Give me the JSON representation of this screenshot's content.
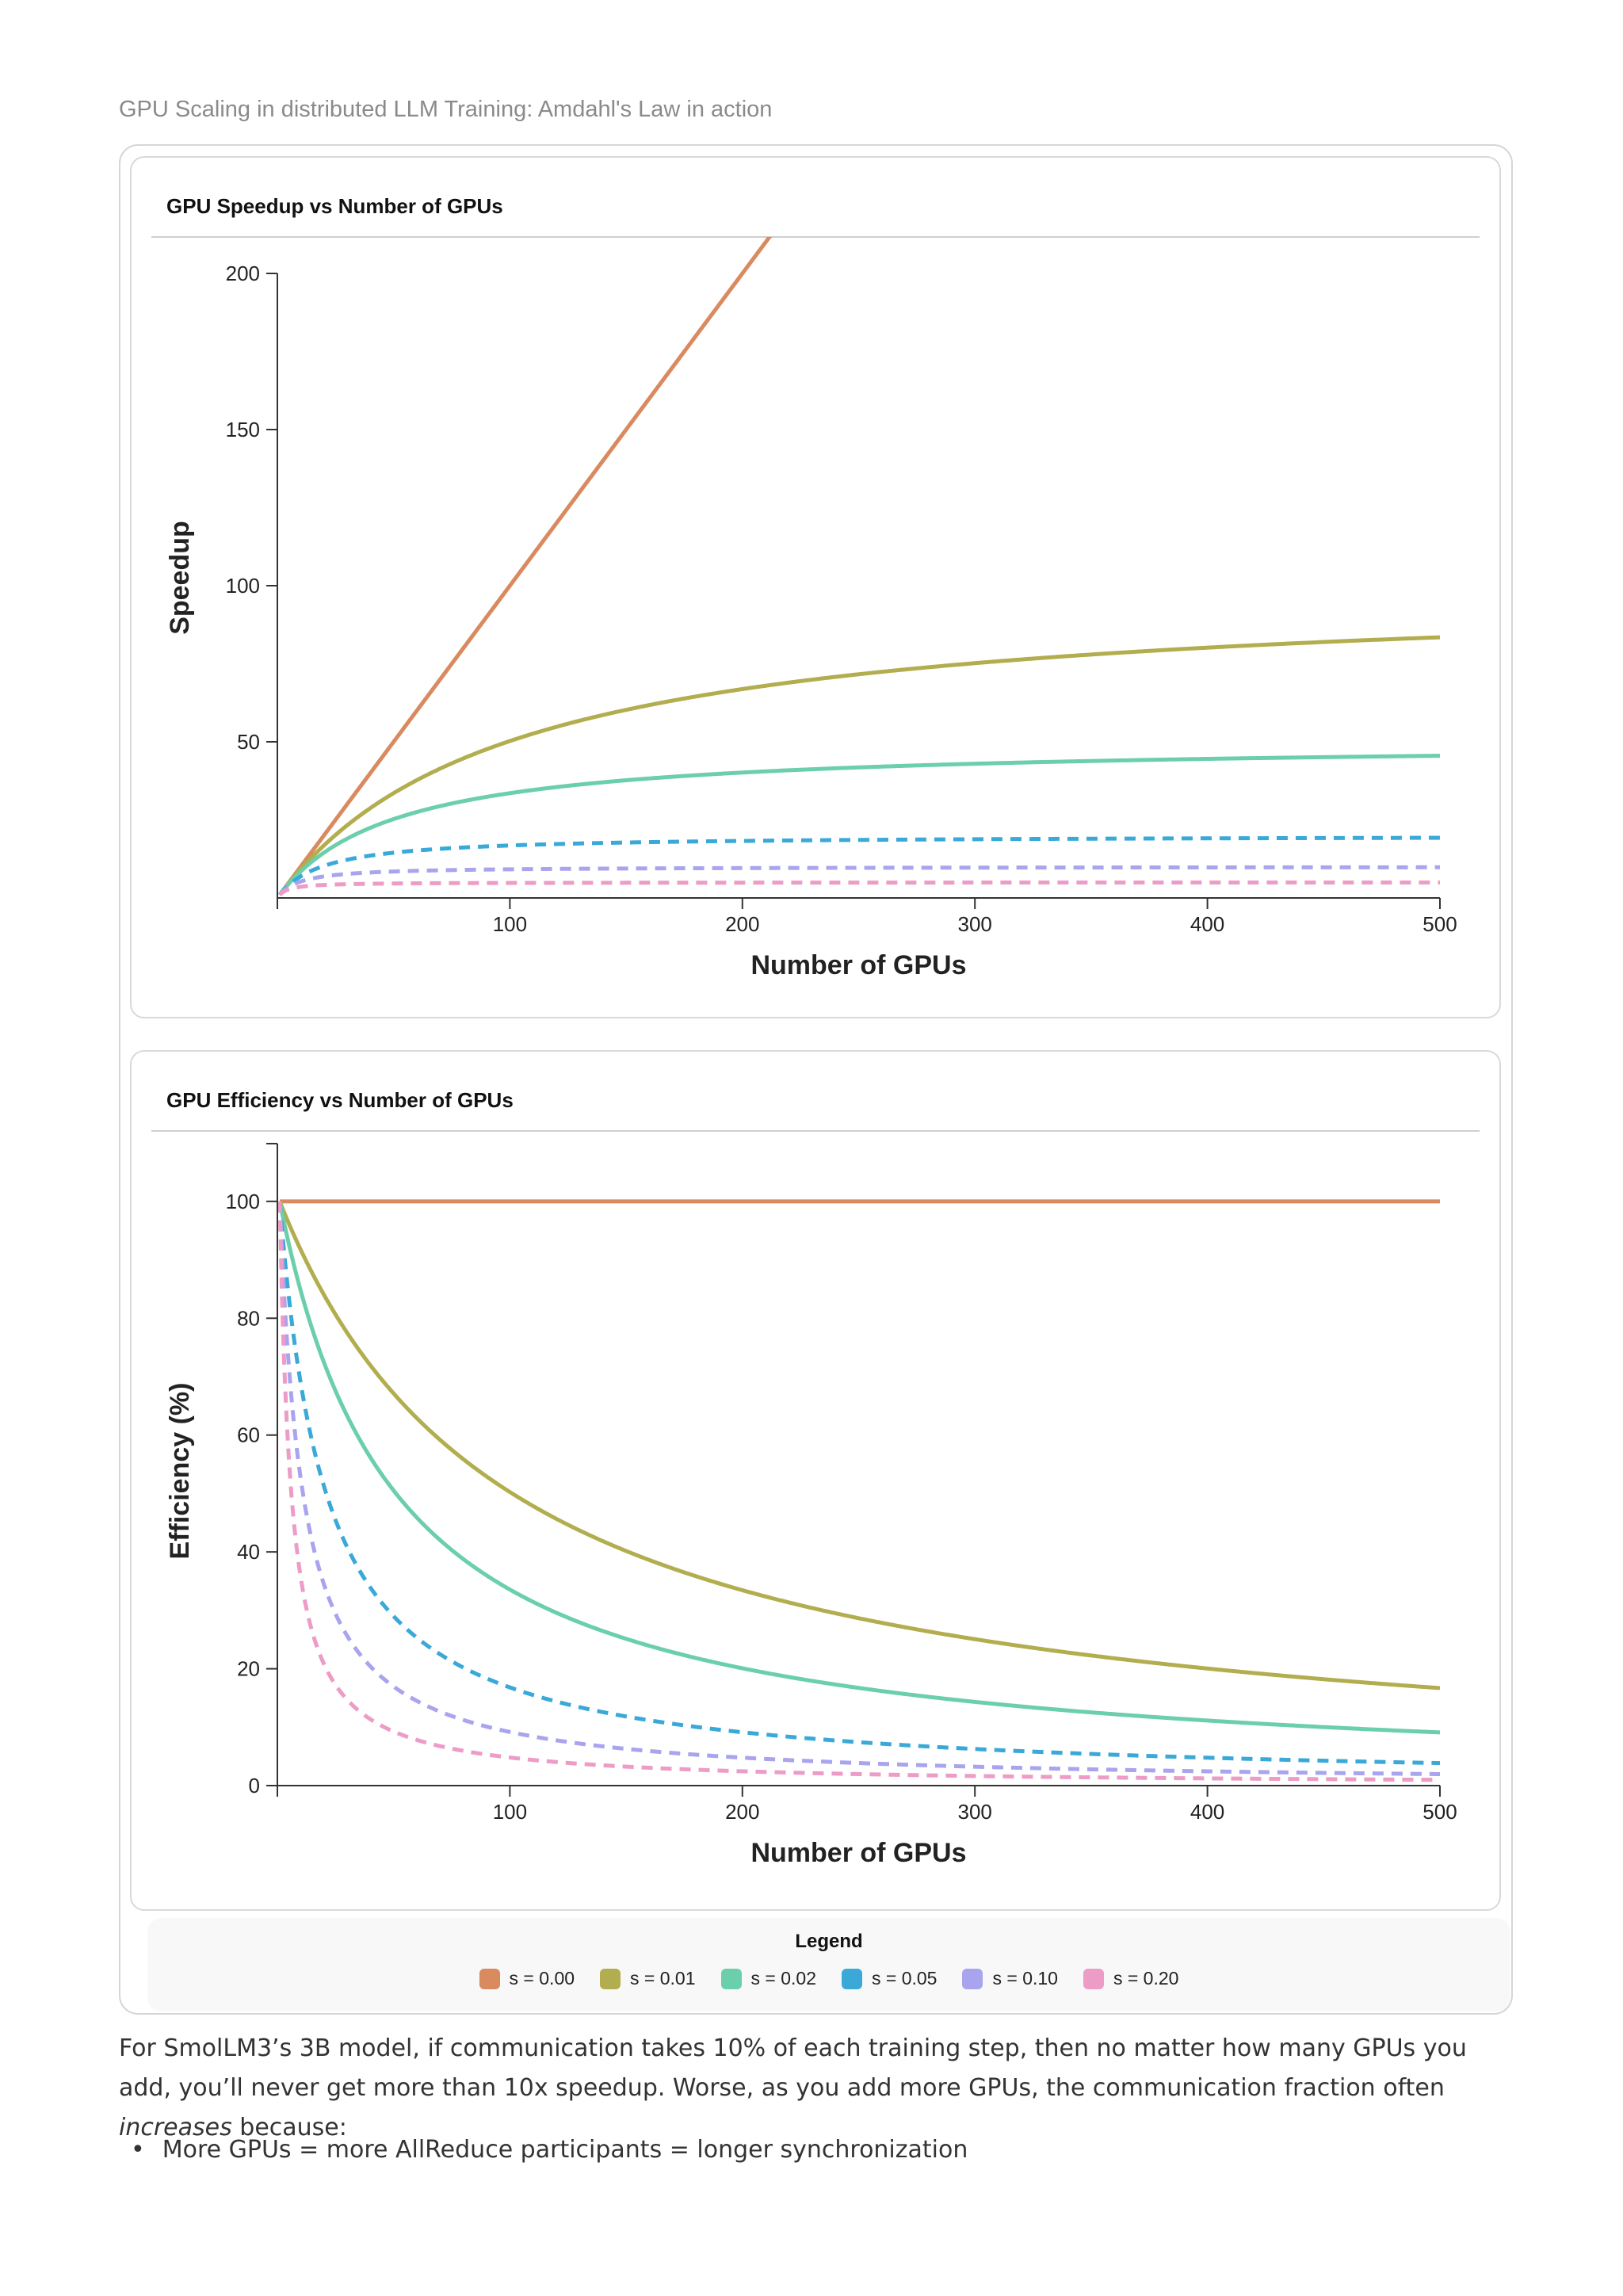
{
  "caption": "GPU Scaling in distributed LLM Training: Amdahl's Law in action",
  "legend": {
    "title": "Legend",
    "items": [
      {
        "label": "s = 0.00",
        "color": "#d98a5f",
        "dashed": false
      },
      {
        "label": "s = 0.01",
        "color": "#b2ad4e",
        "dashed": false
      },
      {
        "label": "s = 0.02",
        "color": "#6acfaa",
        "dashed": false
      },
      {
        "label": "s = 0.05",
        "color": "#3aa9d8",
        "dashed": true
      },
      {
        "label": "s = 0.10",
        "color": "#a9a4ee",
        "dashed": true
      },
      {
        "label": "s = 0.20",
        "color": "#ec9cc6",
        "dashed": true
      }
    ]
  },
  "chart_data": [
    {
      "type": "line",
      "title": "GPU Speedup vs Number of GPUs",
      "xlabel": "Number of GPUs",
      "ylabel": "Speedup",
      "xlim": [
        1,
        500
      ],
      "ylim": [
        0,
        200
      ],
      "xticks": [
        100,
        200,
        300,
        400,
        500
      ],
      "yticks": [
        50,
        100,
        150,
        200
      ],
      "formula": "speedup",
      "series": [
        {
          "name": "s = 0.00",
          "s": 0.0
        },
        {
          "name": "s = 0.01",
          "s": 0.01
        },
        {
          "name": "s = 0.02",
          "s": 0.02
        },
        {
          "name": "s = 0.05",
          "s": 0.05
        },
        {
          "name": "s = 0.10",
          "s": 0.1
        },
        {
          "name": "s = 0.20",
          "s": 0.2
        }
      ]
    },
    {
      "type": "line",
      "title": "GPU Efficiency vs Number of GPUs",
      "xlabel": "Number of GPUs",
      "ylabel": "Efficiency (%)",
      "xlim": [
        1,
        500
      ],
      "ylim": [
        0,
        105
      ],
      "xticks": [
        100,
        200,
        300,
        400,
        500
      ],
      "yticks": [
        0,
        20,
        40,
        60,
        80,
        100
      ],
      "formula": "efficiency",
      "series": [
        {
          "name": "s = 0.00",
          "s": 0.0
        },
        {
          "name": "s = 0.01",
          "s": 0.01
        },
        {
          "name": "s = 0.02",
          "s": 0.02
        },
        {
          "name": "s = 0.05",
          "s": 0.05
        },
        {
          "name": "s = 0.10",
          "s": 0.1
        },
        {
          "name": "s = 0.20",
          "s": 0.2
        }
      ]
    }
  ],
  "paragraph": {
    "before_em": "For SmolLM3’s 3B model, if communication takes 10% of each training step, then no matter how many GPUs you add, you’ll never get more than 10x speedup. Worse, as you add more GPUs, the communication fraction often ",
    "em": "increases",
    "after_em": " because:"
  },
  "bullets": [
    "More GPUs = more AllReduce participants = longer synchronization"
  ]
}
